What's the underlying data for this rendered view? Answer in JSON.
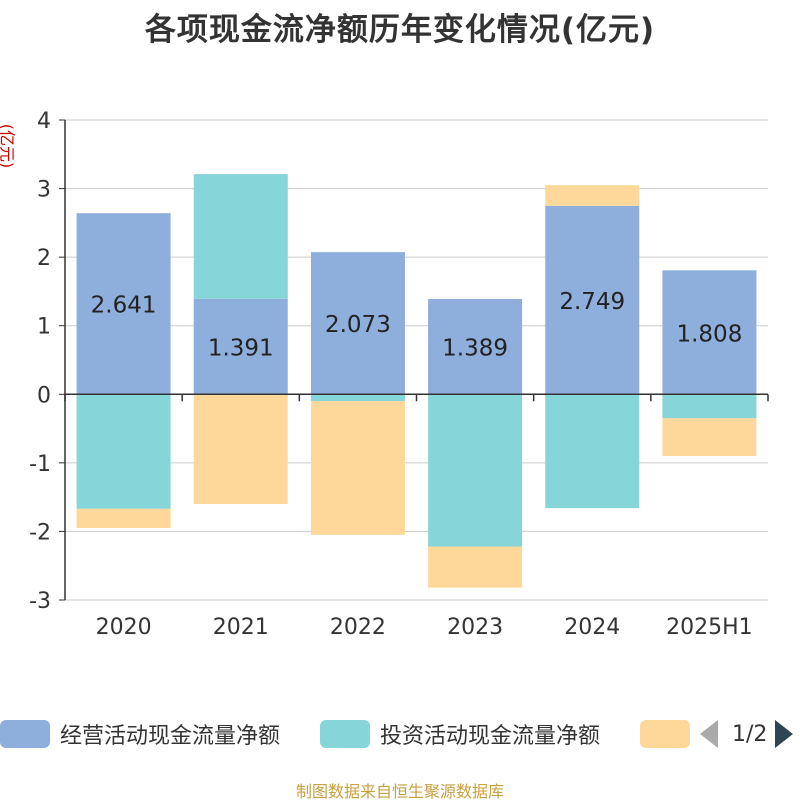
{
  "title": "各项现金流净额历年变化情况(亿元)",
  "unit_label": "(亿元)",
  "source": "制图数据来自恒生聚源数据库",
  "legend_page": "1/2",
  "colors": {
    "operating": "#8eaedc",
    "investing": "#86d5d8",
    "financing": "#fdd89a"
  },
  "chart_data": {
    "type": "bar",
    "stacked": true,
    "categories": [
      "2020",
      "2021",
      "2022",
      "2023",
      "2024",
      "2025H1"
    ],
    "ylim": [
      -3,
      4
    ],
    "yticks": [
      4,
      3,
      2,
      1,
      0,
      -1,
      -2,
      -3
    ],
    "grid": true,
    "legend_position": "bottom",
    "series": [
      {
        "name": "经营活动现金流量净额",
        "values": [
          2.641,
          1.391,
          2.073,
          1.389,
          2.749,
          1.808
        ],
        "labels": [
          "2.641",
          "1.391",
          "2.073",
          "1.389",
          "2.749",
          "1.808"
        ]
      },
      {
        "name": "投资活动现金流量净额",
        "values": [
          -1.67,
          1.82,
          -0.1,
          -2.22,
          -1.66,
          -0.35
        ]
      },
      {
        "name": "",
        "values": [
          -0.28,
          -1.6,
          -1.95,
          -0.6,
          0.3,
          -0.55
        ]
      }
    ]
  }
}
